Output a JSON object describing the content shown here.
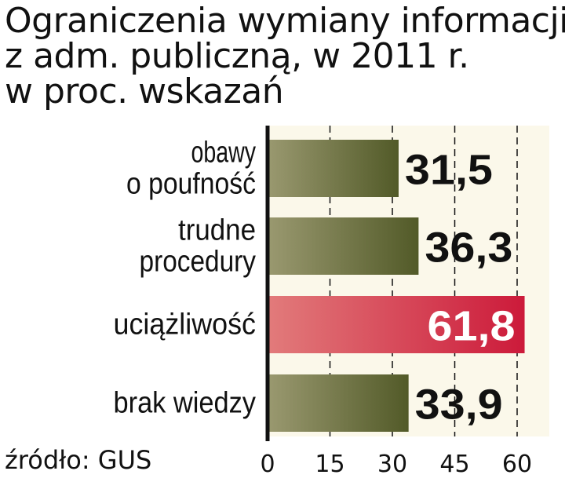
{
  "title_lines": [
    "Ograniczenia wymiany informacji",
    "z adm. publiczną, w 2011 r.",
    "w proc. wskazań"
  ],
  "source": "źródło: GUS",
  "colors": {
    "bar_default_dark": "#525a28",
    "bar_default_light": "#9a9970",
    "bar_highlight_dark": "#cc1a3a",
    "bar_highlight_light": "#e27b7b",
    "panel_background": "#fbf8ea",
    "axis_line": "#111111",
    "text": "#111111",
    "highlight_text": "#ffffff"
  },
  "chart_data": {
    "type": "bar",
    "orientation": "horizontal",
    "categories": [
      [
        "obawy",
        "o poufność"
      ],
      [
        "trudne",
        "procedury"
      ],
      [
        "uciążliwość"
      ],
      [
        "brak wiedzy"
      ]
    ],
    "values": [
      31.5,
      36.3,
      61.8,
      33.9
    ],
    "value_labels": [
      "31,5",
      "36,3",
      "61,8",
      "33,9"
    ],
    "highlight_index": 2,
    "xlim": [
      0,
      60
    ],
    "ticks": [
      0,
      15,
      30,
      45,
      60
    ],
    "tick_labels": [
      "0",
      "15",
      "30",
      "45",
      "60"
    ],
    "grid": "dashed vertical"
  }
}
